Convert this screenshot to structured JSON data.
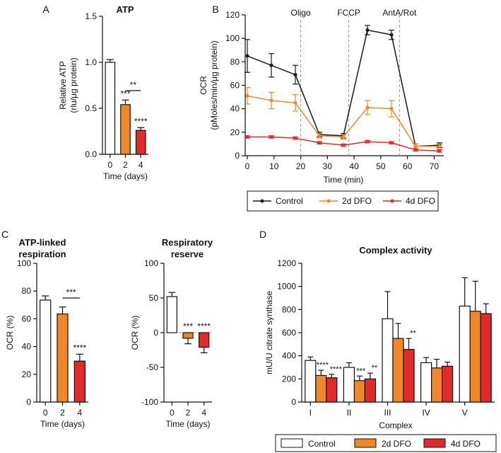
{
  "colors": {
    "control": "#ffffff",
    "dfo2": "#f0882a",
    "dfo4": "#e12b2b",
    "line_control": "#1a1a1a",
    "line_dfo2": "#f0882a",
    "line_dfo4": "#e12b2b"
  },
  "chart_data": [
    {
      "id": "A",
      "panel": "A",
      "type": "bar",
      "title": "ATP",
      "ylabel": "Relative ATP\n(rlu/μg protein)",
      "xlabel": "Time (days)",
      "categories": [
        "0",
        "2",
        "4"
      ],
      "values": [
        1.0,
        0.54,
        0.26
      ],
      "errors": [
        0.03,
        0.05,
        0.03
      ],
      "ylim": [
        0,
        1.5
      ],
      "yticks": [
        "0.0",
        "0.5",
        "1.0",
        "1.5"
      ],
      "bar_colors": [
        "control",
        "dfo2",
        "dfo4"
      ],
      "annotations": [
        "",
        "***",
        "****"
      ],
      "bracket": {
        "from": 1,
        "to": 2,
        "label": "**"
      }
    },
    {
      "id": "B",
      "panel": "B",
      "type": "line",
      "ylabel": "OCR\n(pMoles/min/μg protein)",
      "xlabel": "Time (min)",
      "xlim": [
        0,
        72
      ],
      "ylim": [
        0,
        120
      ],
      "xticks": [
        "0",
        "10",
        "20",
        "30",
        "40",
        "50",
        "60",
        "70"
      ],
      "yticks": [
        "0",
        "20",
        "40",
        "60",
        "80",
        "100",
        "120"
      ],
      "x": [
        0,
        9,
        18,
        27,
        36,
        45,
        54,
        63,
        72
      ],
      "series": [
        {
          "name": "Control",
          "color": "line_control",
          "values": [
            85,
            77,
            69,
            18,
            17,
            107,
            103,
            8,
            9
          ],
          "errors": [
            14,
            10,
            8,
            2,
            2,
            4,
            4,
            2,
            2
          ]
        },
        {
          "name": "2d DFO",
          "color": "line_dfo2",
          "values": [
            51,
            47,
            45,
            17,
            16,
            41,
            40,
            8,
            8
          ],
          "errors": [
            7,
            7,
            7,
            2,
            2,
            6,
            7,
            2,
            2
          ]
        },
        {
          "name": "4d DFO",
          "color": "line_dfo4",
          "values": [
            16,
            16,
            15,
            11,
            9,
            12,
            11,
            5,
            4
          ],
          "errors": [
            1,
            1,
            1,
            1,
            1,
            1,
            1,
            1,
            1
          ]
        }
      ],
      "vlines": [
        {
          "x": 20,
          "label": "Oligo"
        },
        {
          "x": 38,
          "label": "FCCP"
        },
        {
          "x": 57,
          "label": "AntA/Rot"
        }
      ],
      "legend": [
        "Control",
        "2d DFO",
        "4d DFO"
      ]
    },
    {
      "id": "C1",
      "panel": "C",
      "type": "bar",
      "title": "ATP-linked\nrespiration",
      "ylabel": "OCR (%)",
      "xlabel": "Time (days)",
      "categories": [
        "0",
        "2",
        "4"
      ],
      "values": [
        73.5,
        63.5,
        29.5
      ],
      "errors": [
        3,
        5,
        5
      ],
      "ylim": [
        0,
        100
      ],
      "yticks": [
        "0",
        "20",
        "40",
        "60",
        "80",
        "100"
      ],
      "bar_colors": [
        "control",
        "dfo2",
        "dfo4"
      ],
      "annotations": [
        "",
        "",
        "****"
      ],
      "bracket": {
        "from": 1,
        "to": 2,
        "label": "***"
      }
    },
    {
      "id": "C2",
      "panel": "",
      "type": "bar",
      "title": "Respiratory\nreserve",
      "ylabel": "OCR (%)",
      "xlabel": "Time (days)",
      "categories": [
        "0",
        "2",
        "4"
      ],
      "values": [
        52,
        -8,
        -21
      ],
      "errors": [
        6,
        8,
        8
      ],
      "ylim": [
        -100,
        100
      ],
      "yticks": [
        "-100",
        "-50",
        "0",
        "50",
        "100"
      ],
      "bar_colors": [
        "control",
        "dfo2",
        "dfo4"
      ],
      "annotations": [
        "",
        "***",
        "****"
      ],
      "baseline_dashed": 0
    },
    {
      "id": "D",
      "panel": "D",
      "type": "bar",
      "title": "Complex activity",
      "ylabel": "mU/U citrate synthase",
      "xlabel": "Complex",
      "categories": [
        "I",
        "II",
        "III",
        "IV",
        "V"
      ],
      "ylim": [
        0,
        1200
      ],
      "yticks": [
        "0",
        "200",
        "400",
        "600",
        "800",
        "1000",
        "1200"
      ],
      "series": [
        {
          "name": "Control",
          "color": "control",
          "values": [
            360,
            300,
            720,
            340,
            830
          ],
          "errors": [
            30,
            40,
            235,
            45,
            245
          ],
          "annotations": [
            "",
            "",
            "",
            "",
            ""
          ]
        },
        {
          "name": "2d DFO",
          "color": "dfo2",
          "values": [
            230,
            185,
            550,
            295,
            785
          ],
          "errors": [
            45,
            40,
            130,
            75,
            260
          ],
          "annotations": [
            "****",
            "***",
            "",
            "",
            ""
          ]
        },
        {
          "name": "4d DFO",
          "color": "dfo4",
          "values": [
            210,
            200,
            455,
            310,
            765
          ],
          "errors": [
            30,
            50,
            95,
            35,
            85
          ],
          "annotations": [
            "****",
            "**",
            "**",
            "",
            ""
          ]
        }
      ],
      "legend": [
        "Control",
        "2d DFO",
        "4d DFO"
      ]
    }
  ]
}
